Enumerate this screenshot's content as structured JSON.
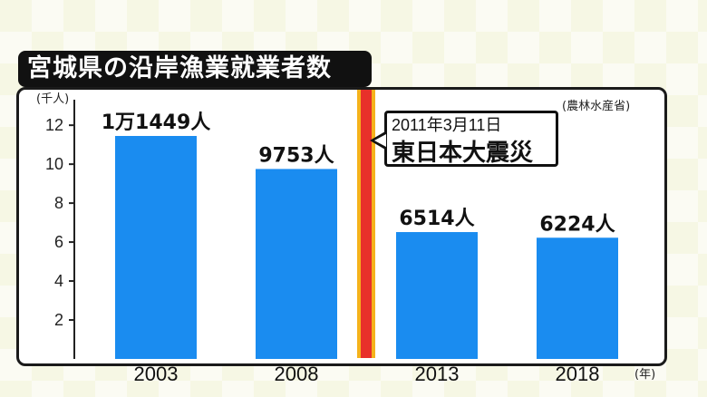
{
  "title": "宮城県の沿岸漁業就業者数",
  "y_unit": "(千人)",
  "x_unit": "(年)",
  "source": "(農林水産省)",
  "event": {
    "date": "2011年3月11日",
    "name": "東日本大震災",
    "year": 2011
  },
  "colors": {
    "bar": "#1a8cf0",
    "event_band": "#e8302a",
    "event_edge": "#f5b21b",
    "title_bg": "#111111"
  },
  "chart_data": {
    "type": "bar",
    "categories": [
      "2003",
      "2008",
      "2013",
      "2018"
    ],
    "values": [
      11.449,
      9.753,
      6.514,
      6.224
    ],
    "data_labels": [
      "1万1449人",
      "9753人",
      "6514人",
      "6224人"
    ],
    "ylim": [
      0,
      13
    ],
    "yticks": [
      2,
      4,
      6,
      8,
      10,
      12
    ],
    "xlabel": "(年)",
    "ylabel": "(千人)",
    "title": "宮城県の沿岸漁業就業者数",
    "grid": false
  }
}
